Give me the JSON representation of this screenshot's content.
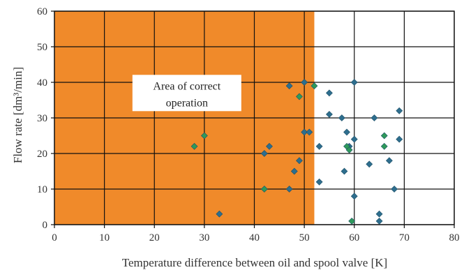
{
  "chart_data": {
    "type": "scatter",
    "title": "",
    "xlabel": "Temperature difference between oil and spool valve [K]",
    "ylabel": "Flow rate [dm³/min]",
    "xlim": [
      0,
      80
    ],
    "ylim": [
      0,
      60
    ],
    "x_ticks": [
      "0",
      "10",
      "20",
      "30",
      "40",
      "50",
      "60",
      "70",
      "80"
    ],
    "y_ticks": [
      "0",
      "10",
      "20",
      "30",
      "40",
      "50",
      "60"
    ],
    "grid": true,
    "region": {
      "x_from": 0,
      "x_to": 52,
      "color": "#F08A2A"
    },
    "annotation": {
      "lines": [
        "Area of correct",
        "operation"
      ],
      "x": 26.5,
      "y": 37
    },
    "series": [
      {
        "color": "#2E6E8E",
        "points": [
          [
            33,
            3
          ],
          [
            42,
            20
          ],
          [
            43,
            22
          ],
          [
            47,
            10
          ],
          [
            47,
            39
          ],
          [
            48,
            15
          ],
          [
            49,
            18
          ],
          [
            50,
            40
          ],
          [
            50,
            26
          ],
          [
            51,
            26
          ],
          [
            53,
            22
          ],
          [
            53,
            12
          ],
          [
            55,
            37
          ],
          [
            55,
            31
          ],
          [
            57.5,
            30
          ],
          [
            58,
            15
          ],
          [
            58.5,
            26
          ],
          [
            59,
            22
          ],
          [
            60,
            40
          ],
          [
            60,
            24
          ],
          [
            60,
            8
          ],
          [
            63,
            17
          ],
          [
            64,
            30
          ],
          [
            65,
            1
          ],
          [
            65,
            3
          ],
          [
            67,
            18
          ],
          [
            68,
            10
          ],
          [
            69,
            32
          ],
          [
            69,
            24
          ]
        ]
      },
      {
        "color": "#2E9A5A",
        "points": [
          [
            28,
            22
          ],
          [
            30,
            25
          ],
          [
            42,
            10
          ],
          [
            49,
            36
          ],
          [
            52,
            39
          ],
          [
            58.5,
            22
          ],
          [
            59,
            21
          ],
          [
            59.5,
            1
          ],
          [
            66,
            25
          ],
          [
            66,
            22
          ]
        ]
      }
    ]
  }
}
